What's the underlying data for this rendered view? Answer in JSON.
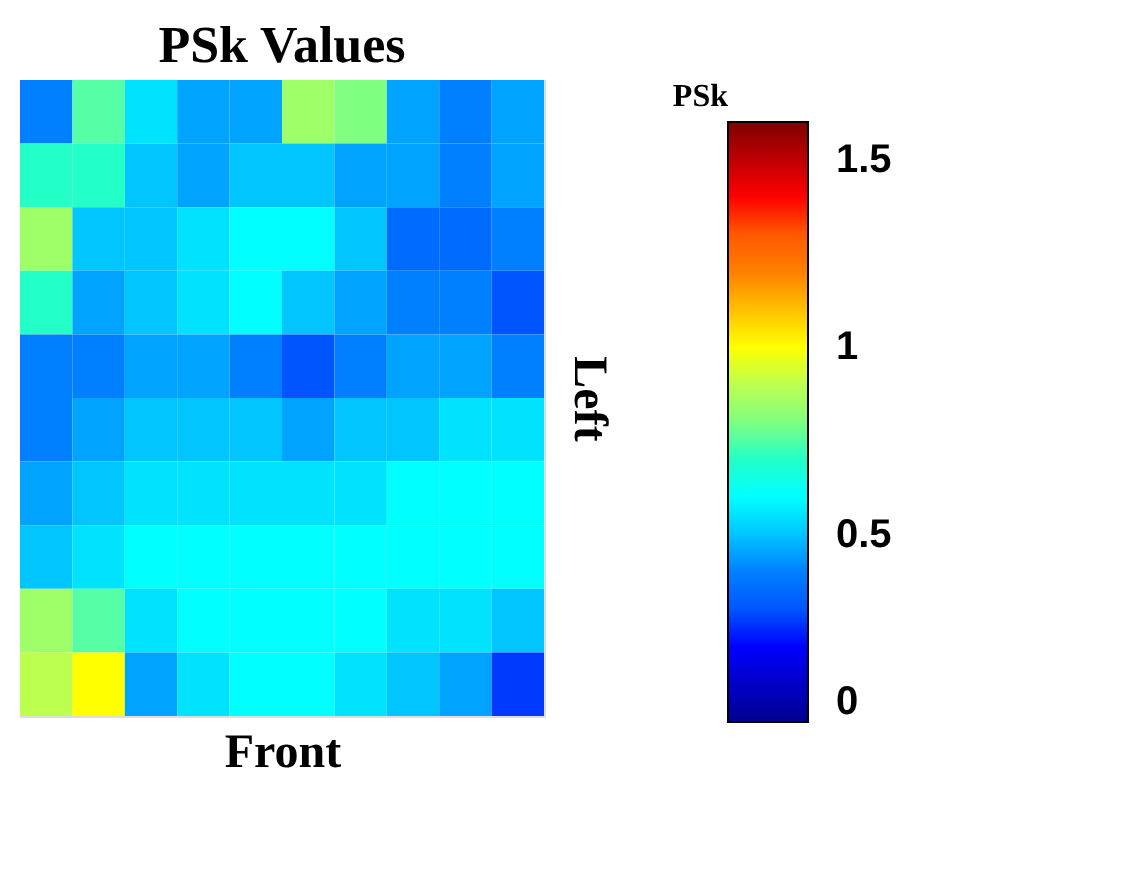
{
  "chart_data": {
    "type": "heatmap",
    "title": "PSk Values",
    "xlabel": "Front",
    "ylabel": "Left",
    "clabel": "PSk",
    "categories": [
      null,
      null,
      null,
      null,
      null,
      null,
      null,
      null,
      null,
      null
    ],
    "y_categories": [
      null,
      null,
      null,
      null,
      null,
      null,
      null,
      null,
      null,
      null
    ],
    "cells": [
      [
        0.4,
        0.75,
        0.55,
        0.45,
        0.45,
        0.85,
        0.8,
        0.45,
        0.4,
        0.45
      ],
      [
        0.7,
        0.7,
        0.5,
        0.45,
        0.5,
        0.5,
        0.45,
        0.45,
        0.4,
        0.45
      ],
      [
        0.85,
        0.5,
        0.5,
        0.55,
        0.6,
        0.6,
        0.5,
        0.35,
        0.35,
        0.4
      ],
      [
        0.7,
        0.45,
        0.5,
        0.55,
        0.6,
        0.5,
        0.45,
        0.4,
        0.4,
        0.3
      ],
      [
        0.4,
        0.4,
        0.45,
        0.45,
        0.4,
        0.3,
        0.4,
        0.45,
        0.45,
        0.4
      ],
      [
        0.4,
        0.45,
        0.5,
        0.5,
        0.5,
        0.45,
        0.5,
        0.5,
        0.55,
        0.55
      ],
      [
        0.45,
        0.5,
        0.55,
        0.55,
        0.55,
        0.55,
        0.55,
        0.6,
        0.6,
        0.6
      ],
      [
        0.5,
        0.55,
        0.6,
        0.6,
        0.6,
        0.6,
        0.6,
        0.6,
        0.6,
        0.6
      ],
      [
        0.85,
        0.75,
        0.55,
        0.6,
        0.6,
        0.6,
        0.6,
        0.55,
        0.55,
        0.5
      ],
      [
        0.9,
        1.0,
        0.45,
        0.55,
        0.6,
        0.6,
        0.55,
        0.5,
        0.45,
        0.25
      ]
    ],
    "clim": [
      0,
      1.6
    ],
    "cticks": [
      0,
      0.5,
      1,
      1.5
    ],
    "tick_labels": false
  }
}
